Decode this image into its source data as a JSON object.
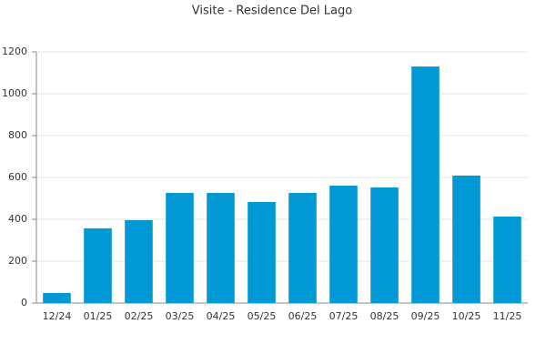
{
  "chart_data": {
    "type": "bar",
    "title": "Visite - Residence Del Lago",
    "categories": [
      "12/24",
      "01/25",
      "02/25",
      "03/25",
      "04/25",
      "05/25",
      "06/25",
      "07/25",
      "08/25",
      "09/25",
      "10/25",
      "11/25"
    ],
    "values": [
      48,
      357,
      396,
      526,
      526,
      483,
      526,
      561,
      552,
      1130,
      609,
      413
    ],
    "color": "#0099d6",
    "ylim": [
      0,
      1200
    ],
    "yticks": [
      0,
      200,
      400,
      600,
      800,
      1000,
      1200
    ],
    "grid": true
  }
}
